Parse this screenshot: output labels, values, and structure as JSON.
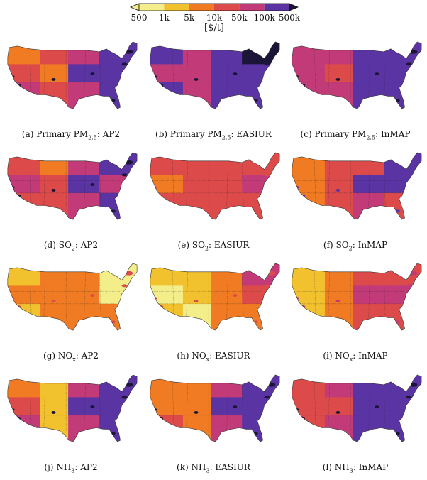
{
  "colorbar": {
    "ticks": [
      "500",
      "1k",
      "5k",
      "10k",
      "50k",
      "100k",
      "500k"
    ],
    "unit": "[$/t]",
    "colors": [
      "#f3ee8a",
      "#f2c12e",
      "#f07b22",
      "#dd4a4a",
      "#c23b78",
      "#5b34a4",
      "#1b1538"
    ]
  },
  "panels": [
    {
      "letter": "(a)",
      "pollutant": "Primary PM",
      "sub": "2.5",
      "model": "AP2",
      "regions": [
        [
          "#f07b22",
          "#dd4a4a",
          "#c23b78",
          "#5b34a4"
        ],
        [
          "#dd4a4a",
          "#f07b22",
          "#5b34a4",
          "#5b34a4"
        ],
        [
          "#c23b78",
          "#dd4a4a",
          "#c23b78",
          "#5b34a4"
        ]
      ],
      "hotspot": "#1b1538"
    },
    {
      "letter": "(b)",
      "pollutant": "Primary PM",
      "sub": "2.5",
      "model": "EASIUR",
      "regions": [
        [
          "#5b34a4",
          "#c23b78",
          "#5b34a4",
          "#1b1538"
        ],
        [
          "#c23b78",
          "#c23b78",
          "#5b34a4",
          "#5b34a4"
        ],
        [
          "#5b34a4",
          "#c23b78",
          "#5b34a4",
          "#5b34a4"
        ]
      ],
      "hotspot": "#1b1538"
    },
    {
      "letter": "(c)",
      "pollutant": "Primary PM",
      "sub": "2.5",
      "model": "InMAP",
      "regions": [
        [
          "#c23b78",
          "#c23b78",
          "#5b34a4",
          "#5b34a4"
        ],
        [
          "#c23b78",
          "#dd4a4a",
          "#5b34a4",
          "#5b34a4"
        ],
        [
          "#c23b78",
          "#c23b78",
          "#5b34a4",
          "#5b34a4"
        ]
      ],
      "hotspot": "#1b1538"
    },
    {
      "letter": "(d)",
      "pollutant": "SO",
      "sub": "2",
      "model": "AP2",
      "regions": [
        [
          "#dd4a4a",
          "#f07b22",
          "#c23b78",
          "#5b34a4"
        ],
        [
          "#c23b78",
          "#dd4a4a",
          "#5b34a4",
          "#c23b78"
        ],
        [
          "#dd4a4a",
          "#dd4a4a",
          "#c23b78",
          "#5b34a4"
        ]
      ],
      "hotspot": "#1b1538"
    },
    {
      "letter": "(e)",
      "pollutant": "SO",
      "sub": "2",
      "model": "EASIUR",
      "regions": [
        [
          "#dd4a4a",
          "#dd4a4a",
          "#dd4a4a",
          "#dd4a4a"
        ],
        [
          "#f07b22",
          "#dd4a4a",
          "#dd4a4a",
          "#c23b78"
        ],
        [
          "#dd4a4a",
          "#dd4a4a",
          "#dd4a4a",
          "#dd4a4a"
        ]
      ],
      "hotspot": "#dd4a4a"
    },
    {
      "letter": "(f)",
      "pollutant": "SO",
      "sub": "2",
      "model": "InMAP",
      "regions": [
        [
          "#f07b22",
          "#dd4a4a",
          "#dd4a4a",
          "#5b34a4"
        ],
        [
          "#f07b22",
          "#dd4a4a",
          "#5b34a4",
          "#5b34a4"
        ],
        [
          "#f07b22",
          "#dd4a4a",
          "#c23b78",
          "#dd4a4a"
        ]
      ],
      "hotspot": "#5b34a4"
    },
    {
      "letter": "(g)",
      "pollutant": "NO",
      "sub": "x",
      "model": "AP2",
      "regions": [
        [
          "#f2c12e",
          "#f07b22",
          "#f07b22",
          "#f3ee8a"
        ],
        [
          "#f07b22",
          "#f07b22",
          "#f07b22",
          "#f3ee8a"
        ],
        [
          "#f2c12e",
          "#f07b22",
          "#f07b22",
          "#f07b22"
        ]
      ],
      "hotspot": "#dd4a4a"
    },
    {
      "letter": "(h)",
      "pollutant": "NO",
      "sub": "x",
      "model": "EASIUR",
      "regions": [
        [
          "#f2c12e",
          "#f2c12e",
          "#f07b22",
          "#c23b78"
        ],
        [
          "#f3ee8a",
          "#f2c12e",
          "#f07b22",
          "#dd4a4a"
        ],
        [
          "#f2c12e",
          "#f3ee8a",
          "#f07b22",
          "#f07b22"
        ]
      ],
      "hotspot": "#dd4a4a"
    },
    {
      "letter": "(i)",
      "pollutant": "NO",
      "sub": "x",
      "model": "InMAP",
      "regions": [
        [
          "#f2c12e",
          "#f07b22",
          "#dd4a4a",
          "#dd4a4a"
        ],
        [
          "#f2c12e",
          "#f07b22",
          "#c23b78",
          "#c23b78"
        ],
        [
          "#f2c12e",
          "#f07b22",
          "#dd4a4a",
          "#dd4a4a"
        ]
      ],
      "hotspot": "#c23b78"
    },
    {
      "letter": "(j)",
      "pollutant": "NH",
      "sub": "3",
      "model": "AP2",
      "regions": [
        [
          "#f07b22",
          "#f2c12e",
          "#c23b78",
          "#5b34a4"
        ],
        [
          "#dd4a4a",
          "#f2c12e",
          "#5b34a4",
          "#5b34a4"
        ],
        [
          "#c23b78",
          "#f2c12e",
          "#c23b78",
          "#5b34a4"
        ]
      ],
      "hotspot": "#1b1538"
    },
    {
      "letter": "(k)",
      "pollutant": "NH",
      "sub": "3",
      "model": "EASIUR",
      "regions": [
        [
          "#f07b22",
          "#f07b22",
          "#c23b78",
          "#5b34a4"
        ],
        [
          "#f07b22",
          "#f07b22",
          "#5b34a4",
          "#5b34a4"
        ],
        [
          "#dd4a4a",
          "#f07b22",
          "#c23b78",
          "#5b34a4"
        ]
      ],
      "hotspot": "#1b1538"
    },
    {
      "letter": "(l)",
      "pollutant": "NH",
      "sub": "3",
      "model": "InMAP",
      "regions": [
        [
          "#dd4a4a",
          "#c23b78",
          "#5b34a4",
          "#5b34a4"
        ],
        [
          "#dd4a4a",
          "#dd4a4a",
          "#5b34a4",
          "#5b34a4"
        ],
        [
          "#dd4a4a",
          "#c23b78",
          "#5b34a4",
          "#5b34a4"
        ]
      ],
      "hotspot": "#1b1538"
    }
  ]
}
